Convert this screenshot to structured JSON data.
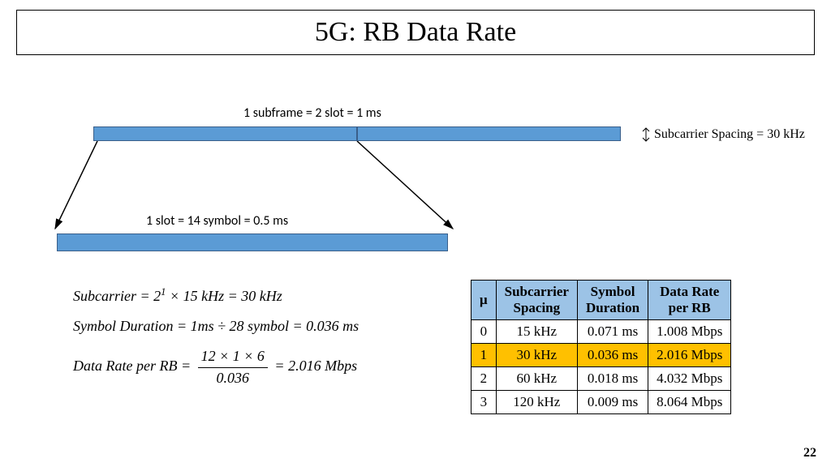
{
  "title": "5G: RB Data Rate",
  "subframe_label": "1 subframe = 2 slot = 1 ms",
  "slot_label": "1 slot = 14 symbol = 0.5 ms",
  "spacing_label": "Subcarrier Spacing = 30 kHz",
  "bar_color": "#5b9bd5",
  "header_color": "#9cc3e6",
  "highlight_color": "#ffc000",
  "formulas": {
    "subcarrier_prefix": "Subcarrier = 2",
    "subcarrier_exp": "1",
    "subcarrier_suffix": " × 15 kHz = 30 kHz",
    "symbol_duration": "Symbol Duration = 1ms ÷ 28 symbol = 0.036 ms",
    "datarate_prefix": "Data Rate per RB = ",
    "datarate_num": "12 × 1 × 6",
    "datarate_den": "0.036",
    "datarate_suffix": " = 2.016 Mbps"
  },
  "table": {
    "headers": [
      "μ",
      "Subcarrier Spacing",
      "Symbol Duration",
      "Data Rate per RB"
    ],
    "rows": [
      {
        "mu": "0",
        "spacing": "15 kHz",
        "duration": "0.071 ms",
        "rate": "1.008 Mbps",
        "highlight": false
      },
      {
        "mu": "1",
        "spacing": "30 kHz",
        "duration": "0.036 ms",
        "rate": "2.016 Mbps",
        "highlight": true
      },
      {
        "mu": "2",
        "spacing": "60 kHz",
        "duration": "0.018 ms",
        "rate": "4.032 Mbps",
        "highlight": false
      },
      {
        "mu": "3",
        "spacing": "120 kHz",
        "duration": "0.009 ms",
        "rate": "8.064 Mbps",
        "highlight": false
      }
    ]
  },
  "page_number": "22"
}
